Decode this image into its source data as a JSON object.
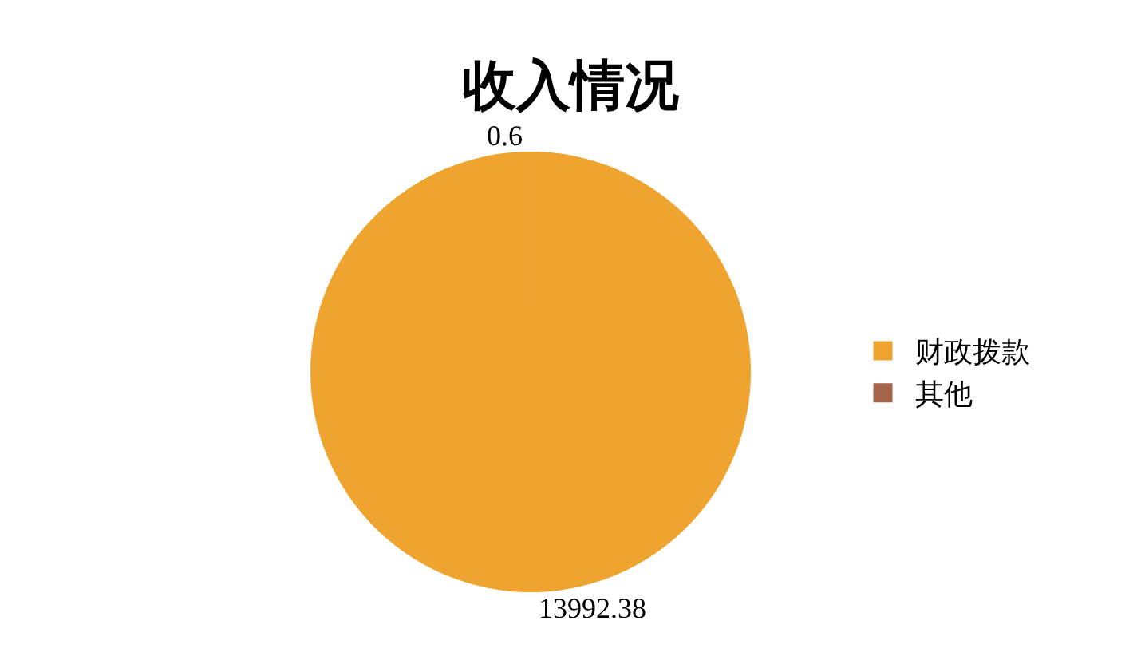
{
  "chart_data": {
    "type": "pie",
    "title": "收入情况",
    "categories": [
      "财政拨款",
      "其他"
    ],
    "values": [
      13992.38,
      0.6
    ],
    "colors": [
      "#f0a430",
      "#a5634a"
    ],
    "data_labels": true,
    "legend": "right"
  }
}
